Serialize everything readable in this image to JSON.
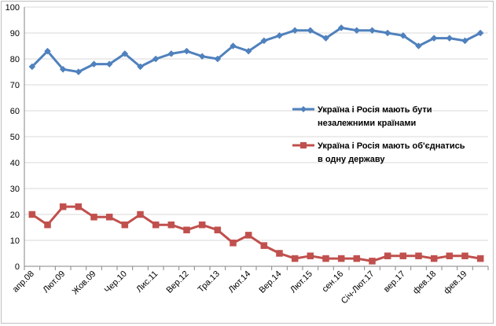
{
  "chart_data": {
    "type": "line",
    "title": "",
    "xlabel": "",
    "ylabel": "",
    "ylim": [
      0,
      100
    ],
    "yticks": [
      0,
      10,
      20,
      30,
      40,
      50,
      60,
      70,
      80,
      90,
      100
    ],
    "grid": "horizontal",
    "legend_position": "right",
    "categories": [
      "апр.08",
      "",
      "Лют.09",
      "",
      "Жов.09",
      "",
      "Чер.10",
      "",
      "Лис.11",
      "",
      "Вер.12",
      "",
      "Тра.13",
      "",
      "Лют.14",
      "",
      "Вер.14",
      "",
      "Лют.15",
      "",
      "сен.16",
      "",
      "Січ-Лют.17",
      "",
      "вер.17",
      "",
      "фев.18",
      "",
      "фев.19",
      ""
    ],
    "series": [
      {
        "name_lines": [
          "Україна і Росія мають бути",
          "незалежними країнами"
        ],
        "color": "#4f81bd",
        "marker": "diamond",
        "values": [
          77,
          83,
          76,
          75,
          78,
          78,
          82,
          77,
          80,
          82,
          83,
          81,
          80,
          85,
          83,
          87,
          89,
          91,
          91,
          88,
          92,
          91,
          91,
          90,
          89,
          85,
          88,
          88,
          87,
          90
        ]
      },
      {
        "name_lines": [
          "Україна і Росія мають об'єднатись",
          "в одну державу"
        ],
        "color": "#c0504d",
        "marker": "square",
        "values": [
          20,
          16,
          23,
          23,
          19,
          19,
          16,
          20,
          16,
          16,
          14,
          16,
          14,
          9,
          12,
          8,
          5,
          3,
          4,
          3,
          3,
          3,
          2,
          4,
          4,
          4,
          3,
          4,
          4,
          3
        ]
      }
    ]
  }
}
